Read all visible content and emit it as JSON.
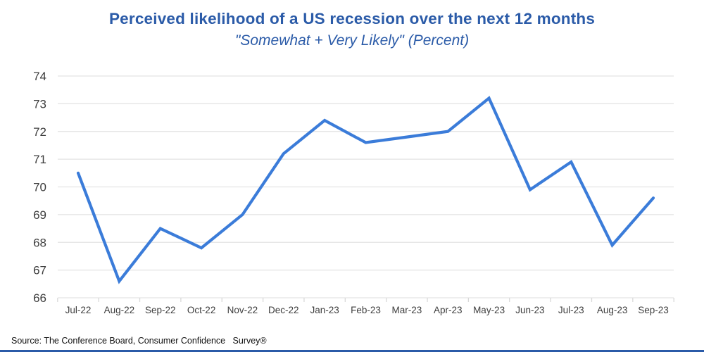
{
  "header": {
    "title": "Perceived likelihood of a US recession over the next 12 months",
    "subtitle": "\"Somewhat + Very Likely\" (Percent)"
  },
  "footer": {
    "source": "Source: The Conference Board, Consumer Confidence   Survey®"
  },
  "colors": {
    "title_blue": "#2b5ba8",
    "line_blue": "#3b7cd9",
    "grid_gray": "#e3e3e3",
    "tick_gray": "#d9d9d9",
    "axis_text": "#3d3d3d",
    "bottom_rule_blue": "#2b5ba8"
  },
  "chart_data": {
    "type": "line",
    "title": "Perceived likelihood of a US recession over the next 12 months",
    "subtitle": "\"Somewhat + Very Likely\" (Percent)",
    "categories": [
      "Jul-22",
      "Aug-22",
      "Sep-22",
      "Oct-22",
      "Nov-22",
      "Dec-22",
      "Jan-23",
      "Feb-23",
      "Mar-23",
      "Apr-23",
      "May-23",
      "Jun-23",
      "Jul-23",
      "Aug-23",
      "Sep-23"
    ],
    "series": [
      {
        "name": "Somewhat + Very Likely (Percent)",
        "values": [
          70.5,
          66.6,
          68.5,
          67.8,
          69.0,
          71.2,
          72.4,
          71.6,
          71.8,
          72.0,
          73.2,
          69.9,
          70.9,
          67.9,
          69.6
        ]
      }
    ],
    "xlabel": "",
    "ylabel": "",
    "ylim": [
      66,
      74
    ],
    "ytick_step": 1,
    "grid": true,
    "legend": "none"
  }
}
